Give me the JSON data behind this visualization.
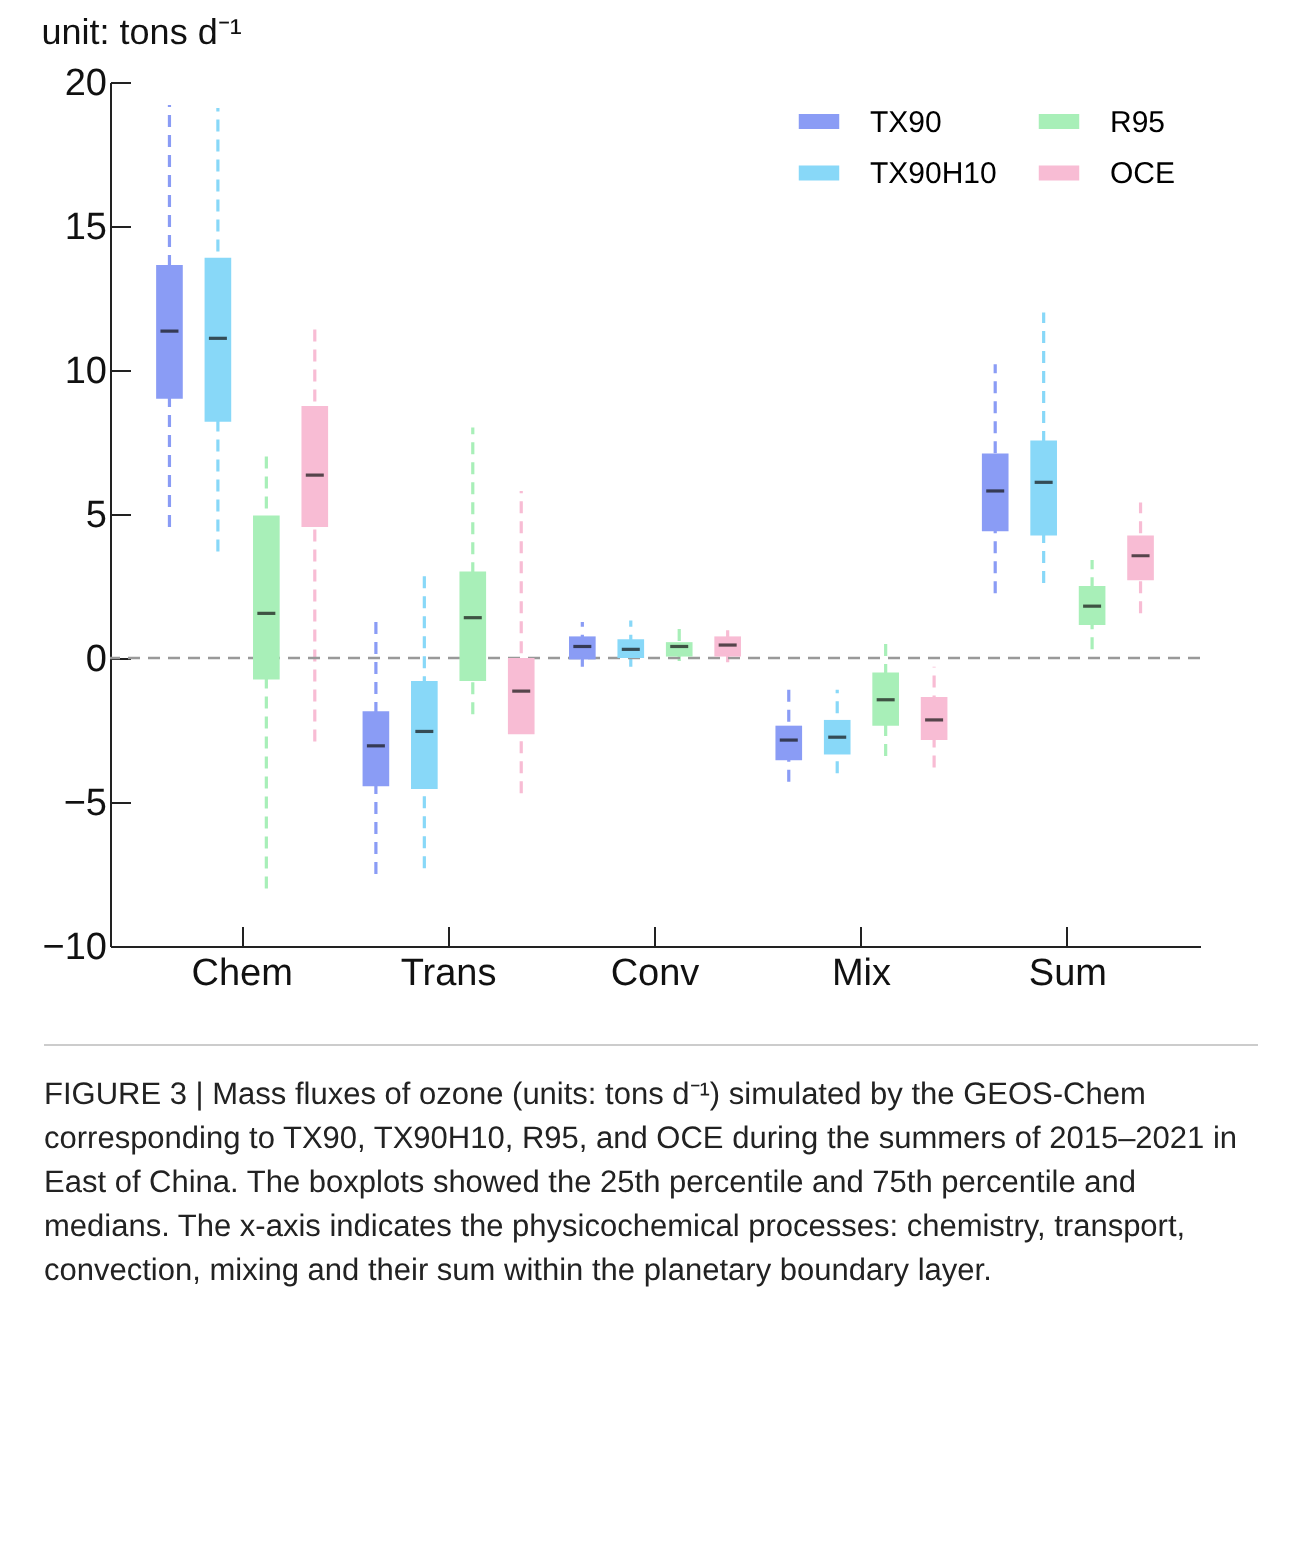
{
  "chart_data": {
    "type": "box",
    "title": "unit: tons d⁻¹",
    "categories": [
      "Chem",
      "Trans",
      "Conv",
      "Mix",
      "Sum"
    ],
    "ylim": [
      -10,
      20
    ],
    "yticks": [
      -10,
      -5,
      0,
      5,
      10,
      15,
      20
    ],
    "legend": "top right",
    "line_style": "dashed",
    "ref_lines": [
      {
        "axis": "y",
        "value": 0,
        "color": "#999999",
        "line_style": "dashed"
      }
    ],
    "series": [
      {
        "name": "TX90",
        "color": "#8a9cf5",
        "boxes": [
          {
            "low": 4.55,
            "q1": 9.0,
            "median": 11.35,
            "q3": 13.65,
            "high": 19.2
          },
          {
            "low": -7.5,
            "q1": -4.45,
            "median": -3.05,
            "q3": -1.85,
            "high": 1.4
          },
          {
            "low": -0.3,
            "q1": -0.05,
            "median": 0.4,
            "q3": 0.75,
            "high": 1.25
          },
          {
            "low": -4.3,
            "q1": -3.55,
            "median": -2.85,
            "q3": -2.35,
            "high": -1.1
          },
          {
            "low": 2.25,
            "q1": 4.4,
            "median": 5.8,
            "q3": 7.1,
            "high": 10.2
          }
        ]
      },
      {
        "name": "TX90H10",
        "color": "#88d8f8",
        "boxes": [
          {
            "low": 3.7,
            "q1": 8.2,
            "median": 11.1,
            "q3": 13.9,
            "high": 19.1
          },
          {
            "low": -7.3,
            "q1": -4.55,
            "median": -2.55,
            "q3": -0.8,
            "high": 3.0
          },
          {
            "low": -0.3,
            "q1": 0.0,
            "median": 0.3,
            "q3": 0.65,
            "high": 1.3
          },
          {
            "low": -4.0,
            "q1": -3.35,
            "median": -2.75,
            "q3": -2.15,
            "high": -1.1
          },
          {
            "low": 2.6,
            "q1": 4.25,
            "median": 6.1,
            "q3": 7.55,
            "high": 12.0
          }
        ]
      },
      {
        "name": "R95",
        "color": "#a8efb8",
        "boxes": [
          {
            "low": -8.0,
            "q1": -0.75,
            "median": 1.55,
            "q3": 4.95,
            "high": 7.0
          },
          {
            "low": -1.95,
            "q1": -0.8,
            "median": 1.4,
            "q3": 3.0,
            "high": 8.0
          },
          {
            "low": -0.1,
            "q1": 0.05,
            "median": 0.4,
            "q3": 0.55,
            "high": 1.05
          },
          {
            "low": -3.4,
            "q1": -2.35,
            "median": -1.45,
            "q3": -0.5,
            "high": 0.6
          },
          {
            "low": 0.3,
            "q1": 1.15,
            "median": 1.8,
            "q3": 2.5,
            "high": 3.4
          }
        ]
      },
      {
        "name": "OCE",
        "color": "#f8bcd4",
        "boxes": [
          {
            "low": -2.9,
            "q1": 4.55,
            "median": 6.35,
            "q3": 8.75,
            "high": 11.45
          },
          {
            "low": -4.7,
            "q1": -2.65,
            "median": -1.15,
            "q3": 0.0,
            "high": 5.8
          },
          {
            "low": -0.15,
            "q1": 0.05,
            "median": 0.45,
            "q3": 0.75,
            "high": 1.2
          },
          {
            "low": -3.8,
            "q1": -2.85,
            "median": -2.15,
            "q3": -1.35,
            "high": -0.3
          },
          {
            "low": 1.55,
            "q1": 2.7,
            "median": 3.55,
            "q3": 4.25,
            "high": 5.4
          }
        ]
      }
    ],
    "annotations": [
      "FIGURE 3 | Mass fluxes of ozone (units: tons d⁻¹) simulated by the GEOS-Chem corresponding to TX90, TX90H10, R95, and OCE during the summers of 2015–2021 in East of China. The boxplots showed the 25th percentile and 75th percentile and medians. The x-axis indicates the physicochemical processes: chemistry, transport, convection, mixing and their sum within the planetary boundary layer."
    ]
  }
}
